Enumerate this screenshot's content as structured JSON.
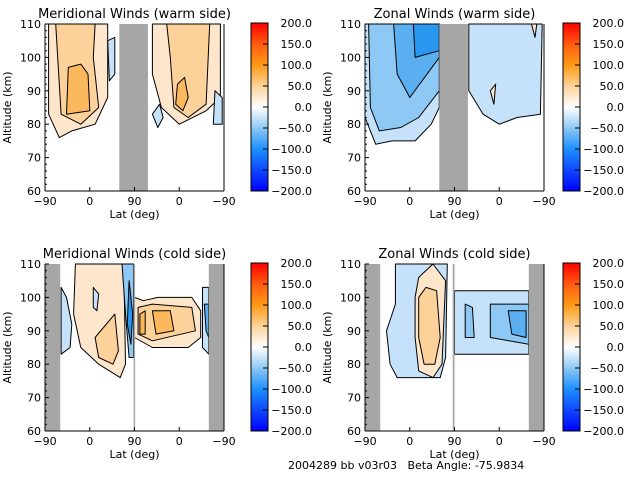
{
  "footer": {
    "text": "2004289 bb v03r03   Beta Angle: -75.9834"
  },
  "colorbar": {
    "ticks": [
      "200.0",
      "150.0",
      "100.0",
      "50.0",
      "0.0",
      "−50.0",
      "−100.0",
      "−150.0",
      "−200.0"
    ],
    "range": [
      -200,
      200
    ],
    "stops": [
      {
        "v": -200,
        "c": "#0000ff"
      },
      {
        "v": -100,
        "c": "#1e90ff"
      },
      {
        "v": -50,
        "c": "#8ec8f4"
      },
      {
        "v": 0,
        "c": "#ffffff"
      },
      {
        "v": 50,
        "c": "#fcd29a"
      },
      {
        "v": 100,
        "c": "#ff9a14"
      },
      {
        "v": 150,
        "c": "#ff5a10"
      },
      {
        "v": 200,
        "c": "#ff0000"
      }
    ]
  },
  "chart_data": [
    {
      "type": "heatmap",
      "id": "meridional-warm",
      "title": "Meridional Winds (warm side)",
      "xlabel": "Lat (deg)",
      "ylabel": "Altitude (km)",
      "xticks": [
        "−90",
        "0",
        "90",
        "0",
        "−90"
      ],
      "yticks": [
        "60",
        "70",
        "80",
        "90",
        "100",
        "110"
      ],
      "ylim": [
        60,
        110
      ],
      "masked_lat_bands": [
        {
          "from": 0.415,
          "to": 0.575
        }
      ],
      "contours": [
        {
          "level": 25,
          "color": "#fde6cc",
          "pts": [
            [
              0.02,
              110
            ],
            [
              0.02,
              83
            ],
            [
              0.08,
              76
            ],
            [
              0.15,
              78
            ],
            [
              0.28,
              80
            ],
            [
              0.35,
              88
            ],
            [
              0.35,
              110
            ]
          ]
        },
        {
          "level": 50,
          "color": "#fcd29a",
          "pts": [
            [
              0.06,
              110
            ],
            [
              0.09,
              83
            ],
            [
              0.2,
              80
            ],
            [
              0.3,
              85
            ],
            [
              0.27,
              100
            ],
            [
              0.28,
              110
            ]
          ]
        },
        {
          "level": 75,
          "color": "#fbb85c",
          "pts": [
            [
              0.13,
              97
            ],
            [
              0.12,
              83
            ],
            [
              0.25,
              84
            ],
            [
              0.24,
              95
            ],
            [
              0.2,
              98
            ]
          ]
        },
        {
          "level": -25,
          "color": "#c6e2fa",
          "pts": [
            [
              0.35,
              105
            ],
            [
              0.39,
              106
            ],
            [
              0.39,
              95
            ],
            [
              0.36,
              93
            ]
          ]
        },
        {
          "level": 25,
          "color": "#fde6cc",
          "pts": [
            [
              0.6,
              110
            ],
            [
              0.6,
              95
            ],
            [
              0.65,
              85
            ],
            [
              0.75,
              80
            ],
            [
              0.9,
              84
            ],
            [
              0.98,
              88
            ],
            [
              0.98,
              110
            ]
          ]
        },
        {
          "level": 50,
          "color": "#fcd29a",
          "pts": [
            [
              0.68,
              110
            ],
            [
              0.7,
              100
            ],
            [
              0.72,
              85
            ],
            [
              0.8,
              82
            ],
            [
              0.9,
              86
            ],
            [
              0.92,
              110
            ]
          ]
        },
        {
          "level": 75,
          "color": "#fbb85c",
          "pts": [
            [
              0.74,
              92
            ],
            [
              0.73,
              86
            ],
            [
              0.77,
              84
            ],
            [
              0.8,
              88
            ],
            [
              0.78,
              94
            ]
          ]
        },
        {
          "level": -25,
          "color": "#c6e2fa",
          "pts": [
            [
              0.6,
              83
            ],
            [
              0.63,
              79
            ],
            [
              0.66,
              82
            ],
            [
              0.64,
              86
            ]
          ]
        },
        {
          "level": -25,
          "color": "#c6e2fa",
          "pts": [
            [
              0.95,
              90
            ],
            [
              0.99,
              88
            ],
            [
              0.99,
              80
            ],
            [
              0.94,
              80
            ]
          ]
        }
      ]
    },
    {
      "type": "heatmap",
      "id": "zonal-warm",
      "title": "Zonal Winds (warm side)",
      "xlabel": "Lat (deg)",
      "ylabel": "Altitude (km)",
      "xticks": [
        "−90",
        "0",
        "90",
        "0",
        "−90"
      ],
      "yticks": [
        "60",
        "70",
        "80",
        "90",
        "100",
        "110"
      ],
      "ylim": [
        60,
        110
      ],
      "masked_lat_bands": [
        {
          "from": 0.415,
          "to": 0.575
        }
      ],
      "contours": [
        {
          "level": -25,
          "color": "#c6e2fa",
          "pts": [
            [
              0.0,
              110
            ],
            [
              0.0,
              82
            ],
            [
              0.06,
              74
            ],
            [
              0.15,
              75
            ],
            [
              0.28,
              75
            ],
            [
              0.37,
              80
            ],
            [
              0.415,
              85
            ],
            [
              0.415,
              110
            ]
          ]
        },
        {
          "level": -50,
          "color": "#8ec8f4",
          "pts": [
            [
              0.02,
              110
            ],
            [
              0.03,
              85
            ],
            [
              0.08,
              78
            ],
            [
              0.2,
              79
            ],
            [
              0.3,
              82
            ],
            [
              0.415,
              90
            ],
            [
              0.415,
              110
            ]
          ]
        },
        {
          "level": -75,
          "color": "#5aaff0",
          "pts": [
            [
              0.16,
              110
            ],
            [
              0.18,
              95
            ],
            [
              0.25,
              88
            ],
            [
              0.415,
              100
            ],
            [
              0.415,
              110
            ]
          ]
        },
        {
          "level": -100,
          "color": "#2a97f0",
          "pts": [
            [
              0.27,
              110
            ],
            [
              0.28,
              100
            ],
            [
              0.415,
              102
            ],
            [
              0.415,
              110
            ]
          ]
        },
        {
          "level": -25,
          "color": "#c6e2fa",
          "pts": [
            [
              0.58,
              110
            ],
            [
              0.58,
              90
            ],
            [
              0.66,
              83
            ],
            [
              0.75,
              80
            ],
            [
              0.85,
              82
            ],
            [
              0.98,
              83
            ],
            [
              0.99,
              110
            ]
          ]
        },
        {
          "level": 25,
          "color": "#fde6cc",
          "pts": [
            [
              0.7,
              90
            ],
            [
              0.72,
              86
            ],
            [
              0.73,
              92
            ]
          ]
        },
        {
          "level": 25,
          "color": "#fde6cc",
          "pts": [
            [
              0.93,
              110
            ],
            [
              0.95,
              106
            ],
            [
              0.96,
              110
            ]
          ]
        }
      ]
    },
    {
      "type": "heatmap",
      "id": "meridional-cold",
      "title": "Meridional Winds (cold side)",
      "xlabel": "Lat (deg)",
      "ylabel": "Altitude (km)",
      "xticks": [
        "−90",
        "0",
        "90",
        "0",
        "−90"
      ],
      "yticks": [
        "60",
        "70",
        "80",
        "90",
        "100",
        "110"
      ],
      "ylim": [
        60,
        110
      ],
      "masked_lat_bands": [
        {
          "from": 0.0,
          "to": 0.085
        },
        {
          "from": 0.495,
          "to": 0.5
        },
        {
          "from": 0.915,
          "to": 1.0
        }
      ],
      "contours": [
        {
          "level": -25,
          "color": "#c6e2fa",
          "pts": [
            [
              0.09,
              103
            ],
            [
              0.12,
              100
            ],
            [
              0.15,
              92
            ],
            [
              0.14,
              85
            ],
            [
              0.09,
              83
            ]
          ]
        },
        {
          "level": 25,
          "color": "#fde6cc",
          "pts": [
            [
              0.17,
              110
            ],
            [
              0.16,
              95
            ],
            [
              0.2,
              85
            ],
            [
              0.3,
              80
            ],
            [
              0.42,
              76
            ],
            [
              0.45,
              80
            ],
            [
              0.44,
              110
            ]
          ]
        },
        {
          "level": 50,
          "color": "#fcd29a",
          "pts": [
            [
              0.28,
              88
            ],
            [
              0.3,
              82
            ],
            [
              0.38,
              80
            ],
            [
              0.41,
              84
            ],
            [
              0.39,
              95
            ]
          ]
        },
        {
          "level": -25,
          "color": "#c6e2fa",
          "pts": [
            [
              0.27,
              103
            ],
            [
              0.3,
              101
            ],
            [
              0.29,
              96
            ],
            [
              0.27,
              97
            ]
          ]
        },
        {
          "level": -50,
          "color": "#8ec8f4",
          "pts": [
            [
              0.43,
              110
            ],
            [
              0.45,
              95
            ],
            [
              0.47,
              82
            ],
            [
              0.495,
              82
            ],
            [
              0.495,
              110
            ]
          ]
        },
        {
          "level": -100,
          "color": "#2a97f0",
          "pts": [
            [
              0.47,
              105
            ],
            [
              0.49,
              95
            ],
            [
              0.48,
              86
            ],
            [
              0.46,
              92
            ]
          ]
        },
        {
          "level": 25,
          "color": "#fde6cc",
          "pts": [
            [
              0.5,
              100
            ],
            [
              0.55,
              99
            ],
            [
              0.63,
              100
            ],
            [
              0.82,
              100
            ],
            [
              0.87,
              96
            ],
            [
              0.87,
              88
            ],
            [
              0.8,
              85
            ],
            [
              0.6,
              85
            ],
            [
              0.5,
              88
            ]
          ]
        },
        {
          "level": 50,
          "color": "#fcd29a",
          "pts": [
            [
              0.52,
              97
            ],
            [
              0.6,
              98
            ],
            [
              0.82,
              97
            ],
            [
              0.84,
              90
            ],
            [
              0.6,
              87
            ],
            [
              0.52,
              89
            ]
          ]
        },
        {
          "level": 75,
          "color": "#fbb85c",
          "pts": [
            [
              0.53,
              95
            ],
            [
              0.56,
              96
            ],
            [
              0.56,
              89
            ],
            [
              0.53,
              89
            ]
          ]
        },
        {
          "level": 75,
          "color": "#fbb85c",
          "pts": [
            [
              0.6,
              96
            ],
            [
              0.7,
              96
            ],
            [
              0.72,
              90
            ],
            [
              0.62,
              89
            ]
          ]
        },
        {
          "level": -25,
          "color": "#c6e2fa",
          "pts": [
            [
              0.88,
              103
            ],
            [
              0.915,
              103
            ],
            [
              0.915,
              83
            ],
            [
              0.88,
              85
            ]
          ]
        },
        {
          "level": -75,
          "color": "#5aaff0",
          "pts": [
            [
              0.89,
              98
            ],
            [
              0.915,
              98
            ],
            [
              0.915,
              88
            ],
            [
              0.9,
              90
            ]
          ]
        }
      ]
    },
    {
      "type": "heatmap",
      "id": "zonal-cold",
      "title": "Zonal Winds (cold side)",
      "xlabel": "Lat (deg)",
      "ylabel": "Altitude (km)",
      "xticks": [
        "−90",
        "0",
        "90",
        "0",
        "−90"
      ],
      "yticks": [
        "60",
        "70",
        "80",
        "90",
        "100",
        "110"
      ],
      "ylim": [
        60,
        110
      ],
      "masked_lat_bands": [
        {
          "from": 0.0,
          "to": 0.085
        },
        {
          "from": 0.49,
          "to": 0.5
        },
        {
          "from": 0.915,
          "to": 1.0
        }
      ],
      "contours": [
        {
          "level": -25,
          "color": "#c6e2fa",
          "pts": [
            [
              0.17,
              110
            ],
            [
              0.17,
              98
            ],
            [
              0.12,
              90
            ],
            [
              0.14,
              80
            ],
            [
              0.18,
              76
            ],
            [
              0.3,
              76
            ],
            [
              0.42,
              76
            ],
            [
              0.45,
              82
            ],
            [
              0.46,
              110
            ]
          ]
        },
        {
          "level": 25,
          "color": "#fde6cc",
          "pts": [
            [
              0.28,
              100
            ],
            [
              0.3,
              106
            ],
            [
              0.38,
              110
            ],
            [
              0.45,
              105
            ],
            [
              0.43,
              80
            ],
            [
              0.38,
              76
            ],
            [
              0.3,
              78
            ],
            [
              0.28,
              88
            ]
          ]
        },
        {
          "level": 50,
          "color": "#fcd29a",
          "pts": [
            [
              0.3,
              100
            ],
            [
              0.34,
              103
            ],
            [
              0.4,
              102
            ],
            [
              0.42,
              88
            ],
            [
              0.39,
              80
            ],
            [
              0.33,
              80
            ],
            [
              0.3,
              88
            ]
          ]
        },
        {
          "level": -25,
          "color": "#c6e2fa",
          "pts": [
            [
              0.5,
              102
            ],
            [
              0.915,
              102
            ],
            [
              0.915,
              83
            ],
            [
              0.5,
              83
            ]
          ]
        },
        {
          "level": -50,
          "color": "#8ec8f4",
          "pts": [
            [
              0.56,
              98
            ],
            [
              0.6,
              97
            ],
            [
              0.61,
              88
            ],
            [
              0.56,
              88
            ]
          ]
        },
        {
          "level": -50,
          "color": "#8ec8f4",
          "pts": [
            [
              0.7,
              98
            ],
            [
              0.915,
              98
            ],
            [
              0.915,
              86
            ],
            [
              0.7,
              88
            ]
          ]
        },
        {
          "level": -75,
          "color": "#5aaff0",
          "pts": [
            [
              0.8,
              96
            ],
            [
              0.9,
              96
            ],
            [
              0.9,
              88
            ],
            [
              0.82,
              89
            ]
          ]
        }
      ]
    }
  ]
}
